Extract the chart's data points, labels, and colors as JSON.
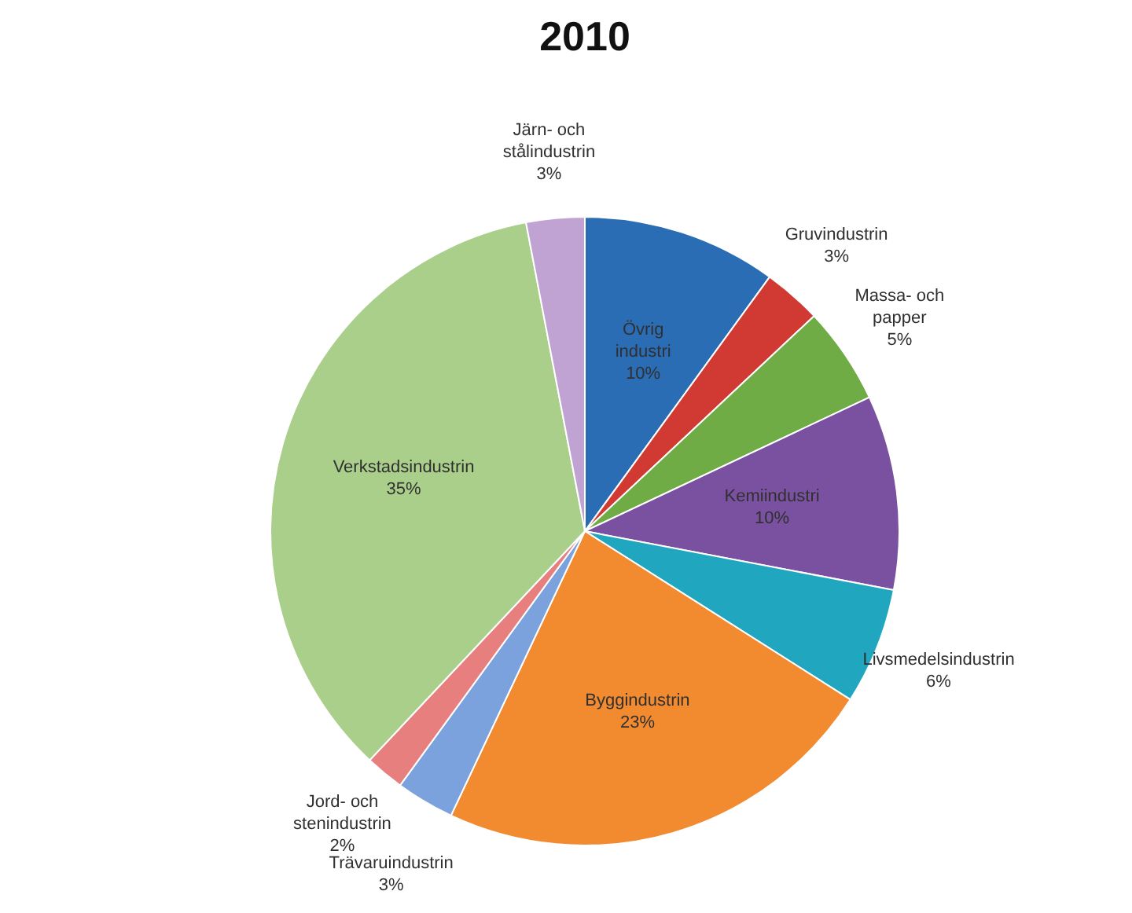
{
  "chart_data": {
    "type": "pie",
    "title": "2010",
    "categories": [
      "Övrig industri",
      "Gruvindustrin",
      "Massa- och papper",
      "Kemiindustri",
      "Livsmedelsindustrin",
      "Byggindustrin",
      "Trävaruindustrin",
      "Jord- och stenindustrin",
      "Verkstadsindustrin",
      "Järn- och stålindustrin"
    ],
    "values": [
      10,
      3,
      5,
      10,
      6,
      23,
      3,
      2,
      35,
      3
    ],
    "value_labels": [
      "10%",
      "3%",
      "5%",
      "10%",
      "6%",
      "23%",
      "3%",
      "2%",
      "35%",
      "3%"
    ],
    "colors": [
      "#2a6db5",
      "#d03a32",
      "#6fac46",
      "#7a51a0",
      "#21a6bf",
      "#f28a30",
      "#7ba2dc",
      "#e87f7f",
      "#a9cf8b",
      "#c0a3d2"
    ],
    "legend": false
  }
}
